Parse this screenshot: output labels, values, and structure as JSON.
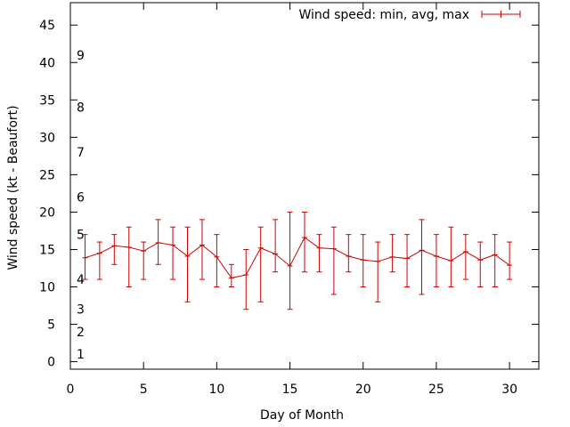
{
  "chart_data": {
    "type": "line",
    "title": "",
    "xlabel": "Day of Month",
    "ylabel": "Wind speed (kt - Beaufort)",
    "xlim": [
      0,
      32
    ],
    "ylim": [
      -1,
      48
    ],
    "x_ticks": [
      0,
      5,
      10,
      15,
      20,
      25,
      30
    ],
    "y_ticks": [
      0,
      5,
      10,
      15,
      20,
      25,
      30,
      35,
      40,
      45
    ],
    "grid": false,
    "legend_position": "top-right",
    "beaufort_labels": [
      {
        "label": "1",
        "y": 1
      },
      {
        "label": "2",
        "y": 4
      },
      {
        "label": "3",
        "y": 7
      },
      {
        "label": "4",
        "y": 11
      },
      {
        "label": "5",
        "y": 17
      },
      {
        "label": "6",
        "y": 22
      },
      {
        "label": "7",
        "y": 28
      },
      {
        "label": "8",
        "y": 34
      },
      {
        "label": "9",
        "y": 41
      }
    ],
    "series": [
      {
        "name": "Wind speed: min, avg, max",
        "color": "#cc0000",
        "x": [
          1,
          2,
          3,
          4,
          5,
          6,
          7,
          8,
          9,
          10,
          11,
          12,
          13,
          14,
          15,
          16,
          17,
          18,
          19,
          20,
          21,
          22,
          23,
          24,
          25,
          26,
          27,
          28,
          29,
          30
        ],
        "avg": [
          13.9,
          14.5,
          15.5,
          15.3,
          14.8,
          15.9,
          15.6,
          14.1,
          15.6,
          14.0,
          11.2,
          11.6,
          15.2,
          14.4,
          12.8,
          16.6,
          15.2,
          15.1,
          14.1,
          13.6,
          13.4,
          14.0,
          13.8,
          14.9,
          14.1,
          13.5,
          14.7,
          13.6,
          14.3,
          12.9
        ],
        "min": [
          11,
          11,
          13,
          10,
          11,
          13,
          11,
          8,
          11,
          10,
          10,
          7,
          8,
          12,
          7,
          12,
          12,
          9,
          12,
          10,
          8,
          12,
          10,
          9,
          10,
          10,
          11,
          10,
          10,
          11
        ],
        "max": [
          17,
          16,
          17,
          18,
          16,
          19,
          18,
          18,
          19,
          17,
          13,
          15,
          18,
          19,
          20,
          20,
          17,
          18,
          17,
          17,
          16,
          17,
          17,
          19,
          17,
          18,
          17,
          16,
          17,
          16
        ]
      }
    ]
  }
}
